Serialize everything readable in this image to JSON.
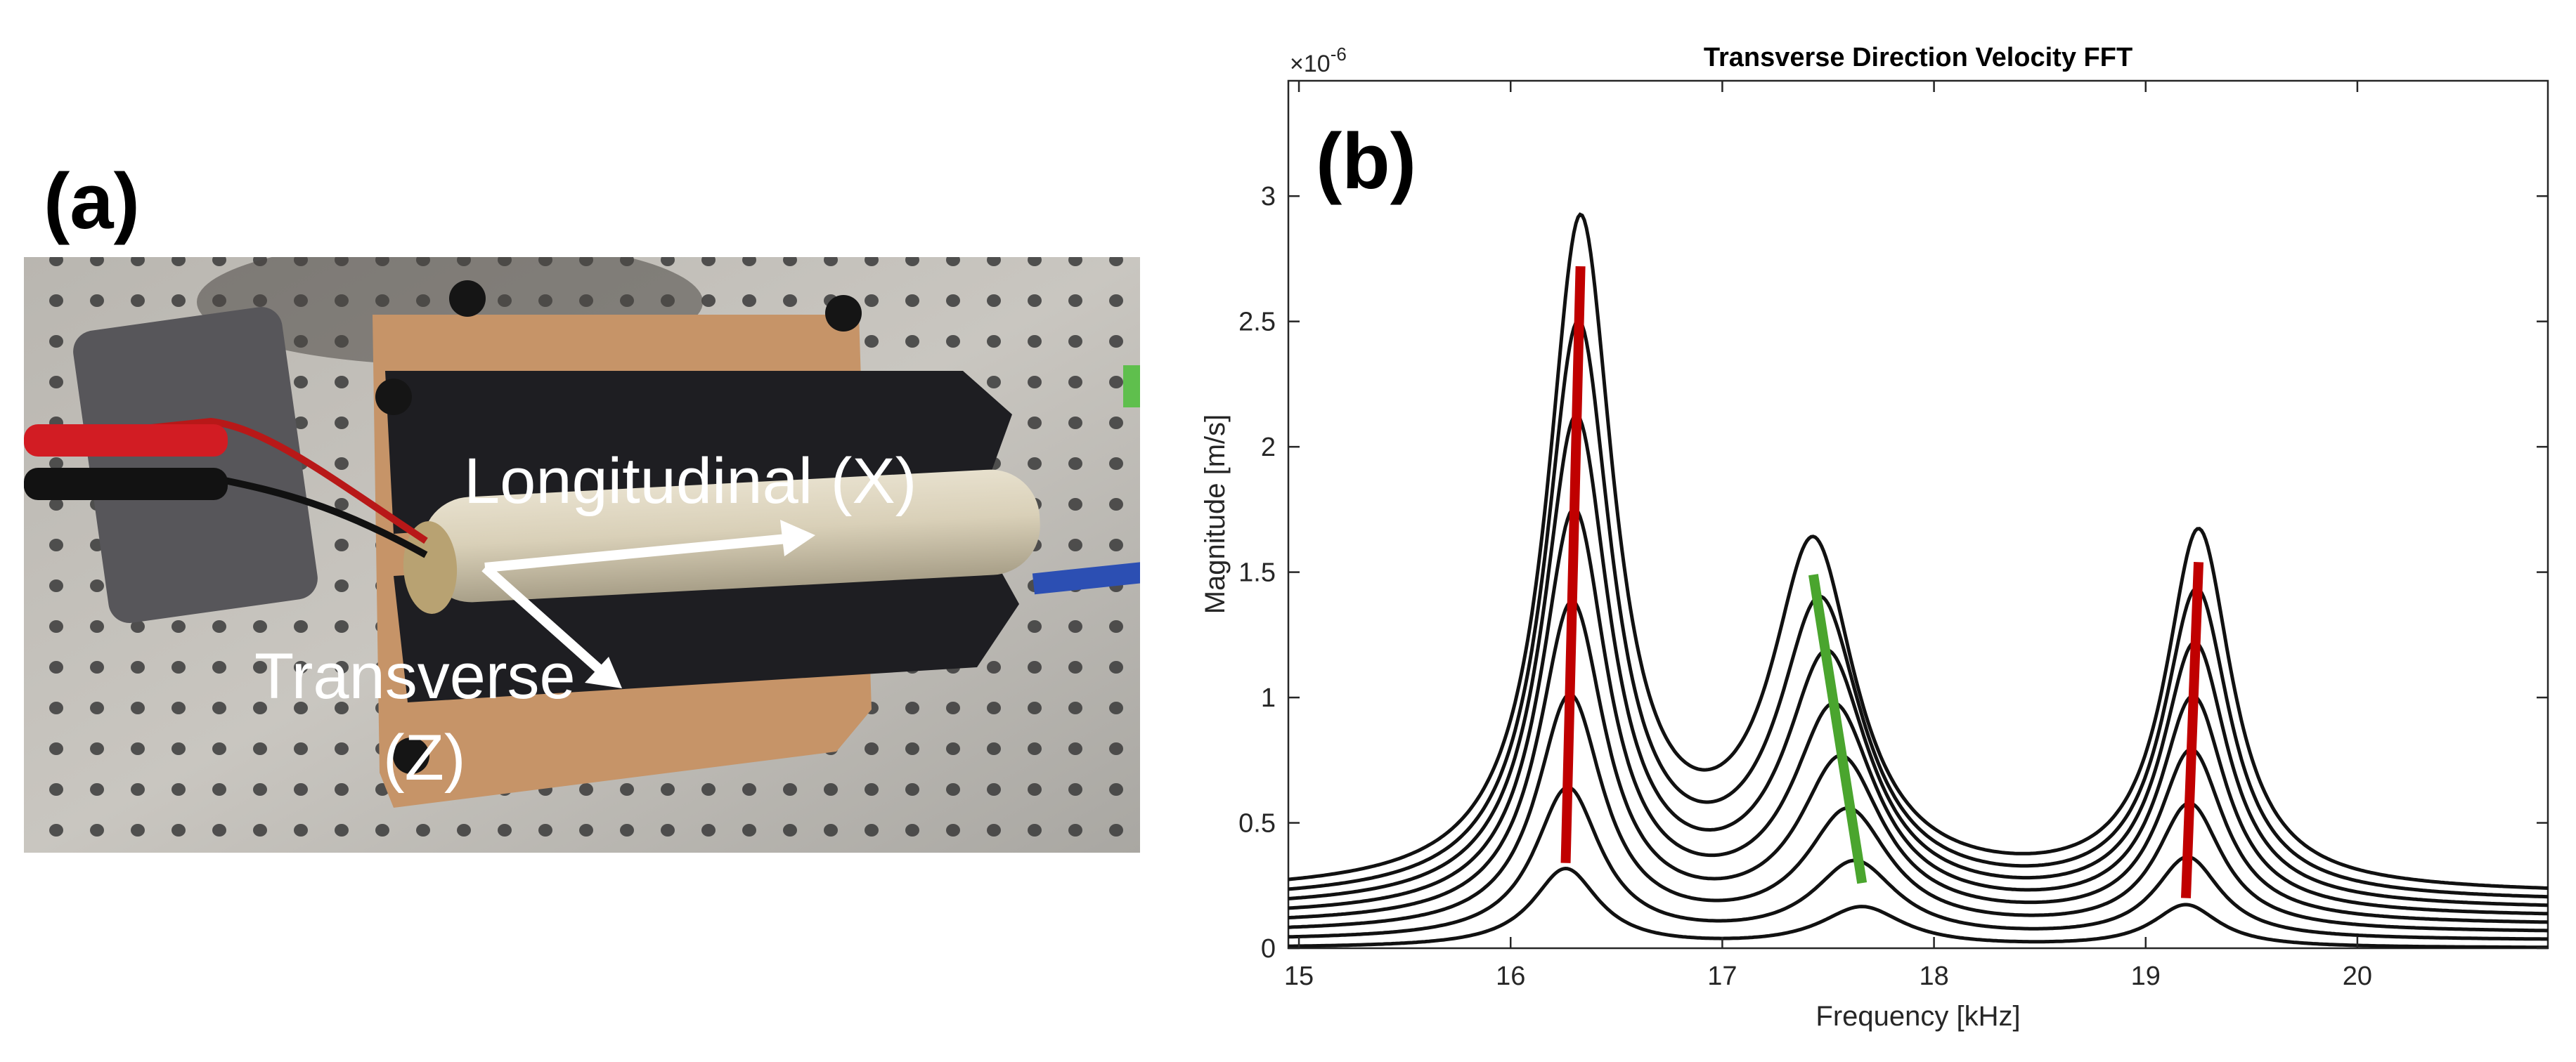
{
  "panel_a": {
    "label": "(a)",
    "annotations": {
      "longitudinal": "Longitudinal (X)",
      "transverse": "Transverse",
      "transverse_axis": "(Z)"
    }
  },
  "chart_data": {
    "type": "line",
    "panel_label": "(b)",
    "title": "Transverse Direction Velocity FFT",
    "xlabel": "Frequency [kHz]",
    "ylabel": "Magnitude [m/s]",
    "y_exponent_label": "×10",
    "y_exponent": "-6",
    "xlim": [
      14.95,
      20.9
    ],
    "ylim": [
      0,
      3.46
    ],
    "x_ticks": [
      15,
      16,
      17,
      18,
      19,
      20
    ],
    "x_tick_labels": [
      "15",
      "16",
      "17",
      "18",
      "19",
      "20"
    ],
    "y_ticks": [
      0,
      0.5,
      1,
      1.5,
      2,
      2.5,
      3
    ],
    "y_tick_labels": [
      "0",
      "0.5",
      "1",
      "1.5",
      "2",
      "2.5",
      "3"
    ],
    "series_count": 8,
    "series_scale": [
      0.118,
      0.227,
      0.353,
      0.479,
      0.604,
      0.73,
      0.857,
      1.0
    ],
    "series_offset": [
      0.0,
      0.03,
      0.06,
      0.09,
      0.12,
      0.15,
      0.18,
      0.21
    ],
    "peaks": [
      {
        "name": "mode-1",
        "freq_low": 16.26,
        "freq_high": 16.33,
        "peak": 2.65,
        "width": 0.19
      },
      {
        "name": "mode-2",
        "freq_low": 17.66,
        "freq_high": 17.43,
        "peak": 1.34,
        "width": 0.24
      },
      {
        "name": "mode-3",
        "freq_low": 19.19,
        "freq_high": 19.25,
        "peak": 1.43,
        "width": 0.19
      }
    ],
    "trend_lines": [
      {
        "name": "mode-1-trend",
        "color": "#c00000",
        "x": [
          16.26,
          16.33
        ],
        "y": [
          0.34,
          2.72
        ]
      },
      {
        "name": "mode-2-trend",
        "color": "#4aa52e",
        "x": [
          17.66,
          17.43
        ],
        "y": [
          0.26,
          1.49
        ]
      },
      {
        "name": "mode-3-trend",
        "color": "#c00000",
        "x": [
          19.19,
          19.25
        ],
        "y": [
          0.2,
          1.54
        ]
      }
    ],
    "line_color": "#111111"
  }
}
